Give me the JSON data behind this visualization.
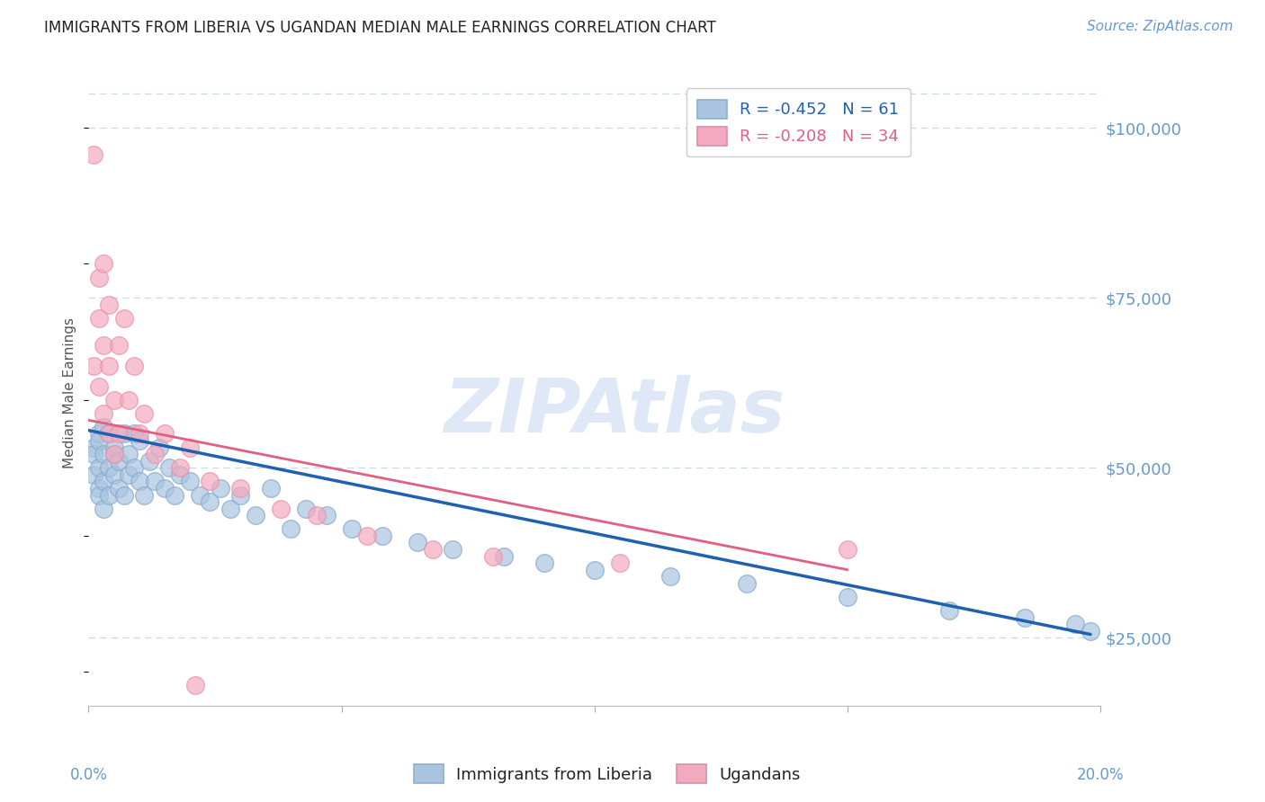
{
  "title": "IMMIGRANTS FROM LIBERIA VS UGANDAN MEDIAN MALE EARNINGS CORRELATION CHART",
  "source": "Source: ZipAtlas.com",
  "ylabel": "Median Male Earnings",
  "xlim": [
    0.0,
    0.2
  ],
  "ylim": [
    15000,
    107000
  ],
  "yticks": [
    25000,
    50000,
    75000,
    100000
  ],
  "xticks": [
    0.0,
    0.05,
    0.1,
    0.15,
    0.2
  ],
  "xtick_minor": [
    0.025,
    0.075,
    0.125,
    0.175
  ],
  "xtick_labels": [
    "0.0%",
    "",
    "",
    "",
    "20.0%"
  ],
  "ytick_labels": [
    "$25,000",
    "$50,000",
    "$75,000",
    "$100,000"
  ],
  "blue_label": "Immigrants from Liberia",
  "pink_label": "Ugandans",
  "blue_R": -0.452,
  "blue_N": 61,
  "pink_R": -0.208,
  "pink_N": 34,
  "blue_color": "#aac4e0",
  "pink_color": "#f4aabe",
  "blue_edge": "#85a8cc",
  "pink_edge": "#e890a8",
  "blue_line_color": "#2060b0",
  "pink_line_color": "#e06080",
  "axis_color": "#6699cc",
  "grid_color": "#c8d8ee",
  "watermark": "ZIPAtlas",
  "watermark_color": "#c8daf0",
  "title_color": "#222222",
  "blue_x": [
    0.001,
    0.001,
    0.001,
    0.002,
    0.002,
    0.002,
    0.002,
    0.002,
    0.003,
    0.003,
    0.003,
    0.003,
    0.004,
    0.004,
    0.004,
    0.005,
    0.005,
    0.005,
    0.006,
    0.006,
    0.007,
    0.007,
    0.008,
    0.008,
    0.009,
    0.009,
    0.01,
    0.01,
    0.011,
    0.012,
    0.013,
    0.014,
    0.015,
    0.016,
    0.017,
    0.018,
    0.02,
    0.022,
    0.024,
    0.026,
    0.028,
    0.03,
    0.033,
    0.036,
    0.04,
    0.043,
    0.047,
    0.052,
    0.058,
    0.065,
    0.072,
    0.082,
    0.09,
    0.1,
    0.115,
    0.13,
    0.15,
    0.17,
    0.185,
    0.195,
    0.198
  ],
  "blue_y": [
    53000,
    49000,
    52000,
    55000,
    50000,
    47000,
    54000,
    46000,
    52000,
    48000,
    56000,
    44000,
    50000,
    55000,
    46000,
    52000,
    49000,
    53000,
    51000,
    47000,
    55000,
    46000,
    52000,
    49000,
    50000,
    55000,
    48000,
    54000,
    46000,
    51000,
    48000,
    53000,
    47000,
    50000,
    46000,
    49000,
    48000,
    46000,
    45000,
    47000,
    44000,
    46000,
    43000,
    47000,
    41000,
    44000,
    43000,
    41000,
    40000,
    39000,
    38000,
    37000,
    36000,
    35000,
    34000,
    33000,
    31000,
    29000,
    28000,
    27000,
    26000
  ],
  "pink_x": [
    0.001,
    0.001,
    0.002,
    0.002,
    0.002,
    0.003,
    0.003,
    0.003,
    0.004,
    0.004,
    0.004,
    0.005,
    0.005,
    0.006,
    0.006,
    0.007,
    0.008,
    0.009,
    0.01,
    0.011,
    0.013,
    0.015,
    0.018,
    0.02,
    0.024,
    0.03,
    0.038,
    0.045,
    0.055,
    0.068,
    0.08,
    0.105,
    0.15,
    0.021
  ],
  "pink_y": [
    96000,
    65000,
    78000,
    72000,
    62000,
    80000,
    68000,
    58000,
    74000,
    65000,
    55000,
    60000,
    52000,
    68000,
    55000,
    72000,
    60000,
    65000,
    55000,
    58000,
    52000,
    55000,
    50000,
    53000,
    48000,
    47000,
    44000,
    43000,
    40000,
    38000,
    37000,
    36000,
    38000,
    18000
  ],
  "blue_line_x": [
    0.0,
    0.198
  ],
  "blue_line_y": [
    55500,
    25500
  ],
  "pink_line_x": [
    0.0,
    0.15
  ],
  "pink_line_y": [
    57000,
    35000
  ]
}
